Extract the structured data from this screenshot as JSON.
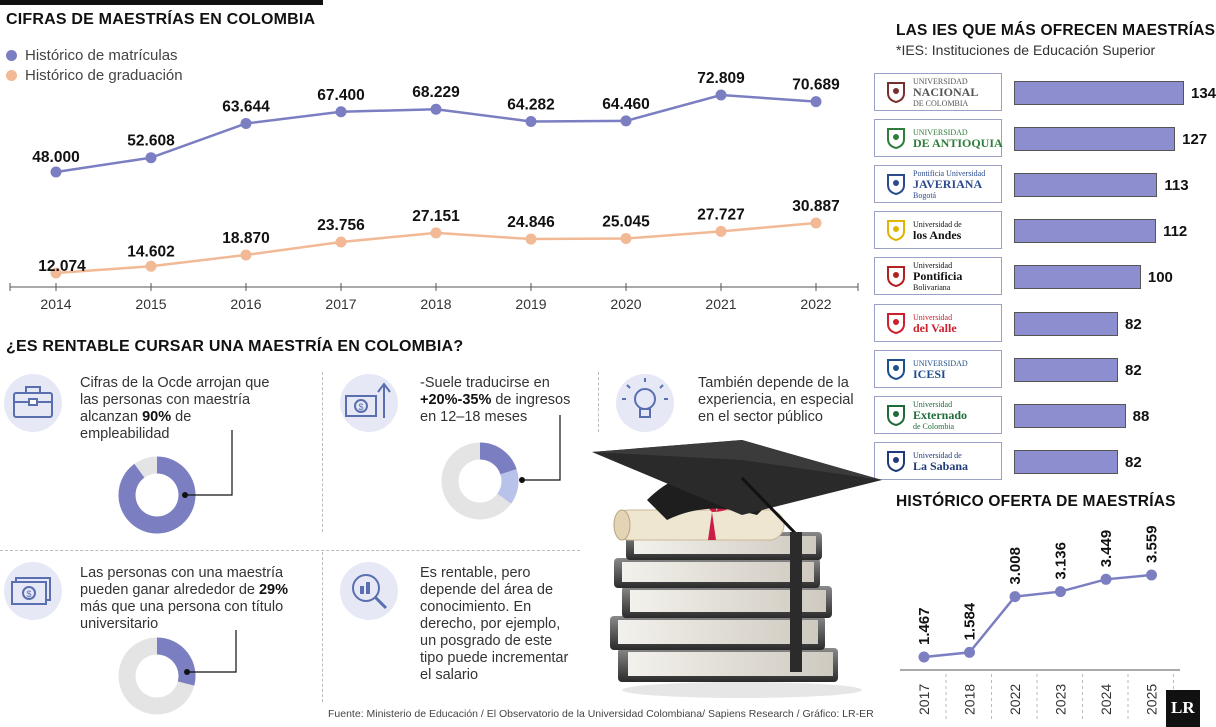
{
  "main_title": "CIFRAS DE MAESTRÍAS EN COLOMBIA",
  "legend": {
    "enrollment": "Histórico de matrículas",
    "graduation": "Histórico de graduación"
  },
  "colors": {
    "enrollment": "#7b7fc2",
    "graduation": "#f2b996",
    "bar": "#8c8ed0",
    "axis": "#555555"
  },
  "chart_data": [
    {
      "type": "line",
      "x": [
        "2014",
        "2015",
        "2016",
        "2017",
        "2018",
        "2019",
        "2020",
        "2021",
        "2022"
      ],
      "series": [
        {
          "name": "Histórico de matrículas",
          "values": [
            48000,
            52608,
            63644,
            67400,
            68229,
            64282,
            64460,
            72809,
            70689
          ],
          "labels": [
            "48.000",
            "52.608",
            "63.644",
            "67.400",
            "68.229",
            "64.282",
            "64.460",
            "72.809",
            "70.689"
          ]
        },
        {
          "name": "Histórico de graduación",
          "values": [
            12074,
            14602,
            18870,
            23756,
            27151,
            24846,
            25045,
            27727,
            30887
          ],
          "labels": [
            "12.074",
            "14.602",
            "18.870",
            "23.756",
            "27.151",
            "24.846",
            "25.045",
            "27.727",
            "30.887"
          ]
        }
      ]
    },
    {
      "type": "bar",
      "title": "LAS IES QUE MÁS OFRECEN MAESTRÍAS",
      "subtitle": "*IES: Instituciones de Educación Superior",
      "categories": [
        "Universidad Nacional de Colombia",
        "Universidad de Antioquia",
        "Pontificia Universidad Javeriana",
        "Universidad de los Andes",
        "Universidad Pontificia Bolivariana",
        "Universidad del Valle",
        "Universidad Icesi",
        "Universidad Externado de Colombia",
        "Universidad de La Sabana"
      ],
      "values": [
        134,
        127,
        113,
        112,
        100,
        82,
        82,
        88,
        82
      ]
    },
    {
      "type": "line",
      "title": "HISTÓRICO OFERTA DE MAESTRÍAS",
      "x": [
        "2017",
        "2018",
        "2022",
        "2023",
        "2024",
        "2025"
      ],
      "values": [
        1467,
        1584,
        3008,
        3136,
        3449,
        3559
      ],
      "labels": [
        "1.467",
        "1.584",
        "3.008",
        "3.136",
        "3.449",
        "3.559"
      ]
    },
    {
      "type": "pie",
      "title": "¿ES RENTABLE CURSAR UNA MAESTRÍA EN COLOMBIA?",
      "donuts": [
        {
          "name": "empleabilidad",
          "value": 90
        },
        {
          "name": "ingresos",
          "value_low": 20,
          "value_high": 35
        },
        {
          "name": "salario",
          "value": 29
        }
      ]
    }
  ],
  "logos": [
    {
      "line1": "UNIVERSIDAD",
      "line2": "NACIONAL",
      "line3": "DE COLOMBIA",
      "color": "#555555",
      "mark": "#7a2f2f"
    },
    {
      "line1": "UNIVERSIDAD",
      "line2": "DE ANTIOQUIA",
      "line3": "",
      "color": "#2e7d3a",
      "mark": "#2e7d3a"
    },
    {
      "line1": "Pontificia Universidad",
      "line2": "JAVERIANA",
      "line3": "Bogotá",
      "color": "#2b4b8c",
      "mark": "#2b4b8c"
    },
    {
      "line1": "Universidad de",
      "line2": "los Andes",
      "line3": "",
      "color": "#111111",
      "mark": "#e2b400"
    },
    {
      "line1": "Universidad",
      "line2": "Pontificia",
      "line3": "Bolivariana",
      "color": "#111111",
      "mark": "#b32020"
    },
    {
      "line1": "Universidad",
      "line2": "del Valle",
      "line3": "",
      "color": "#d01f2c",
      "mark": "#d01f2c"
    },
    {
      "line1": "UNIVERSIDAD",
      "line2": "ICESI",
      "line3": "",
      "color": "#1f4e8c",
      "mark": "#1f4e8c"
    },
    {
      "line1": "Universidad",
      "line2": "Externado",
      "line3": "de Colombia",
      "color": "#1f6b3a",
      "mark": "#1f6b3a"
    },
    {
      "line1": "Universidad de",
      "line2": "La Sabana",
      "line3": "",
      "color": "#1f3a7a",
      "mark": "#1f3a7a"
    }
  ],
  "rentable": {
    "item1": {
      "pre": "Cifras de la Ocde arrojan que las personas con maestría alcanzan ",
      "bold": "90%",
      "post": " de empleabilidad"
    },
    "item2": {
      "pre": "-Suele traducirse en ",
      "bold": "+20%-35%",
      "post": " de ingresos en 12–18 meses"
    },
    "item3": {
      "text": "También depende de la experiencia, en especial en el sector público"
    },
    "item4": {
      "pre": "Las personas con una maestría pueden ganar alrededor de ",
      "bold": "29%",
      "post": " más que una persona con título universitario"
    },
    "item5": {
      "text": "Es rentable, pero depende del área de conocimiento. En derecho, por ejemplo, un posgrado de este tipo puede incrementar el salario"
    }
  },
  "source": "Fuente: Ministerio de Educación / El Observatorio de la Universidad Colombiana/ Sapiens Research / Gráfico: LR-ER",
  "brand": "LR"
}
